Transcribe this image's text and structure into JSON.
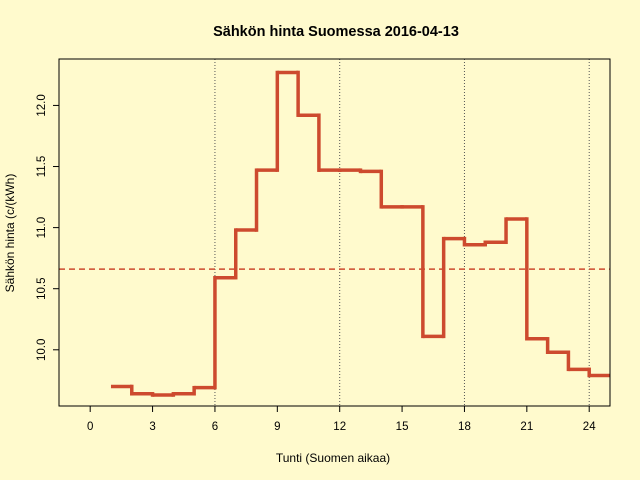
{
  "colors": {
    "background": "#fffacd",
    "series": "#cd4a2e",
    "mean_line": "#cd4a2e",
    "axis": "#000000",
    "vgrid": "#555555"
  },
  "chart_data": {
    "type": "line",
    "step": true,
    "title": "Sähkön hinta Suomessa 2016-04-13",
    "xlabel": "Tunti (Suomen aikaa)",
    "ylabel": "Sähkön hinta (c/(kWh)",
    "xlim": [
      -1.5,
      25
    ],
    "ylim": [
      9.54,
      12.38
    ],
    "xticks": [
      0,
      3,
      6,
      9,
      12,
      15,
      18,
      21,
      24
    ],
    "yticks": [
      10.0,
      10.5,
      11.0,
      11.5,
      12.0
    ],
    "ytick_labels": [
      "10.0",
      "10.5",
      "11.0",
      "11.5",
      "12.0"
    ],
    "vertical_dotted_lines_at": [
      6,
      12,
      18,
      24
    ],
    "mean_line": {
      "y": 10.66,
      "style": "dashed"
    },
    "x": [
      1,
      2,
      3,
      4,
      5,
      6,
      7,
      8,
      9,
      10,
      11,
      12,
      13,
      14,
      15,
      16,
      17,
      18,
      19,
      20,
      21,
      22,
      23,
      24
    ],
    "values": [
      9.7,
      9.64,
      9.63,
      9.64,
      9.69,
      10.59,
      10.98,
      11.47,
      12.27,
      11.92,
      11.47,
      11.47,
      11.46,
      11.17,
      11.17,
      10.11,
      10.91,
      10.86,
      10.88,
      11.07,
      10.09,
      9.98,
      9.84,
      9.79
    ]
  }
}
